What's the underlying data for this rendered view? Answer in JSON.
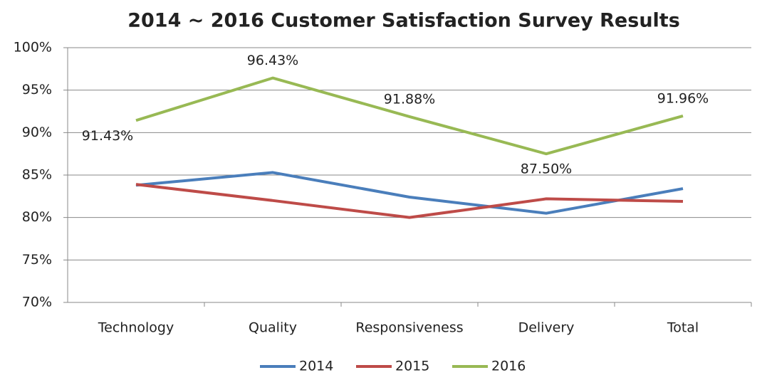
{
  "chart_data": {
    "type": "line",
    "title": "2014 ~ 2016 Customer Satisfaction Survey Results",
    "categories": [
      "Technology",
      "Quality",
      "Responsiveness",
      "Delivery",
      "Total"
    ],
    "series": [
      {
        "name": "2014",
        "color": "#4a7ebb",
        "values": [
          83.8,
          85.3,
          82.4,
          80.5,
          83.4
        ]
      },
      {
        "name": "2015",
        "color": "#be4b48",
        "values": [
          83.9,
          82.0,
          80.0,
          82.2,
          81.9
        ]
      },
      {
        "name": "2016",
        "color": "#98b954",
        "values": [
          91.43,
          96.43,
          91.88,
          87.5,
          91.96
        ],
        "value_labels": [
          "91.43%",
          "96.43%",
          "91.88%",
          "87.50%",
          "91.96%"
        ]
      }
    ],
    "ylim": [
      70,
      100
    ],
    "yticks": [
      {
        "value": 70,
        "label": "70%"
      },
      {
        "value": 75,
        "label": "75%"
      },
      {
        "value": 80,
        "label": "80%"
      },
      {
        "value": 85,
        "label": "85%"
      },
      {
        "value": 90,
        "label": "90%"
      },
      {
        "value": 95,
        "label": "95%"
      },
      {
        "value": 100,
        "label": "100%"
      }
    ],
    "grid": true,
    "legend": "bottom"
  }
}
